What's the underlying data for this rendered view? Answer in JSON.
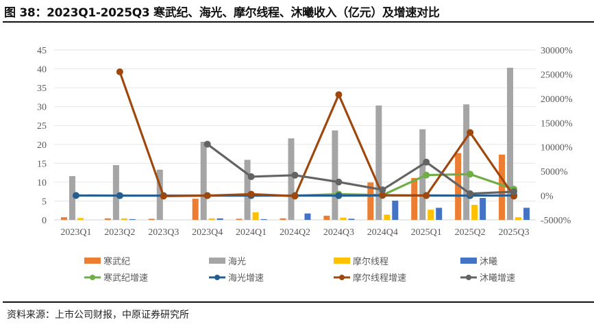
{
  "title": "图 38：2023Q1-2025Q3 寒武纪、海光、摩尔线程、沐曦收入（亿元）及增速对比",
  "source": "资料来源：上市公司财报，中原证券研究所",
  "chart_data": {
    "type": "bar+line",
    "title": "",
    "categories": [
      "2023Q1",
      "2023Q2",
      "2023Q3",
      "2023Q4",
      "2024Q1",
      "2024Q2",
      "2024Q3",
      "2024Q4",
      "2025Q1",
      "2025Q2",
      "2025Q3"
    ],
    "left_axis": {
      "range": [
        0,
        45
      ],
      "ticks": [
        0,
        5,
        10,
        15,
        20,
        25,
        30,
        35,
        40,
        45
      ],
      "unit": "亿元"
    },
    "right_axis": {
      "range": [
        -5000,
        30000
      ],
      "ticks": [
        "-5000%",
        "0%",
        "5000%",
        "10000%",
        "15000%",
        "20000%",
        "25000%",
        "30000%"
      ],
      "tick_values": [
        -5000,
        0,
        5000,
        10000,
        15000,
        20000,
        25000,
        30000
      ]
    },
    "grid": true,
    "legend_placement": "bottom",
    "bar_series": [
      {
        "name": "寒武纪",
        "color": "#ED7D31",
        "values": [
          0.7,
          0.4,
          0.3,
          5.6,
          0.3,
          0.4,
          1.1,
          9.9,
          11.1,
          17.7,
          17.3
        ]
      },
      {
        "name": "海光",
        "color": "#A5A5A5",
        "values": [
          11.6,
          14.5,
          13.3,
          20.7,
          15.9,
          21.6,
          23.7,
          30.3,
          24.0,
          30.6,
          40.3
        ]
      },
      {
        "name": "摩尔线程",
        "color": "#FFC000",
        "values": [
          0.5,
          0.4,
          0,
          0.4,
          2.0,
          0,
          0.6,
          1.4,
          2.7,
          4.0,
          0.7
        ]
      },
      {
        "name": "沐曦",
        "color": "#4472C4",
        "values": [
          0,
          0.2,
          0,
          0.4,
          0.2,
          1.7,
          0.3,
          5.1,
          3.2,
          5.8,
          3.2
        ]
      }
    ],
    "line_series": [
      {
        "name": "寒武纪增速",
        "color": "#70AD47",
        "values": [
          null,
          0,
          0,
          0,
          0,
          0,
          300,
          100,
          4230,
          4420,
          1330
        ]
      },
      {
        "name": "海光增速",
        "color": "#255E91",
        "values": [
          30,
          0,
          0,
          10,
          20,
          0,
          0,
          50,
          30,
          0,
          40
        ]
      },
      {
        "name": "摩尔线程增速",
        "color": "#9E480E",
        "values": [
          null,
          25500,
          -100,
          0,
          300,
          -100,
          20800,
          100,
          0,
          13000,
          -100
        ]
      },
      {
        "name": "沐曦增速",
        "color": "#636363",
        "values": [
          null,
          null,
          null,
          10600,
          3900,
          4200,
          2800,
          1200,
          6900,
          400,
          800
        ]
      }
    ]
  }
}
